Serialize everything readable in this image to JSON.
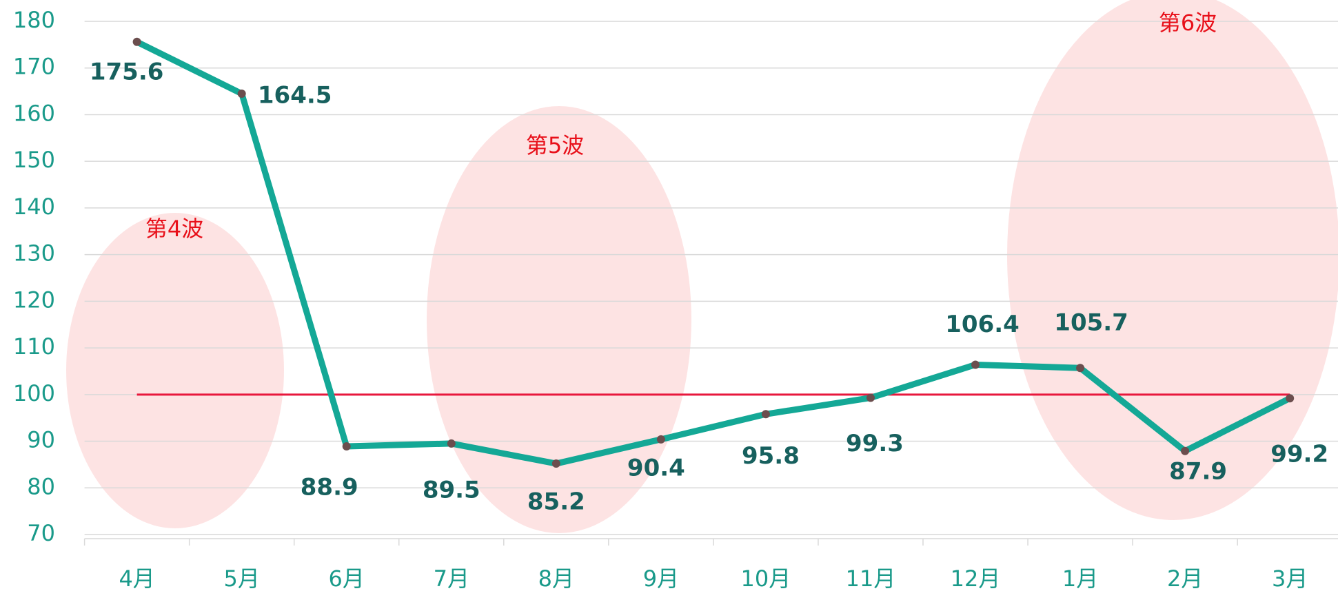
{
  "chart_data": {
    "type": "line",
    "categories": [
      "4月",
      "5月",
      "6月",
      "7月",
      "8月",
      "9月",
      "10月",
      "11月",
      "12月",
      "1月",
      "2月",
      "3月"
    ],
    "values": [
      175.6,
      164.5,
      88.9,
      89.5,
      85.2,
      90.4,
      95.8,
      99.3,
      106.4,
      105.7,
      87.9,
      99.2
    ],
    "color": "#14a896",
    "ylim": [
      70,
      180
    ],
    "yticks": [
      70,
      80,
      90,
      100,
      110,
      120,
      130,
      140,
      150,
      160,
      170,
      180
    ],
    "grid": true,
    "reference_line": {
      "value": 100,
      "color": "#e8173c"
    },
    "annotations": [
      {
        "text": "第4波"
      },
      {
        "text": "第5波"
      },
      {
        "text": "第6波"
      }
    ]
  }
}
